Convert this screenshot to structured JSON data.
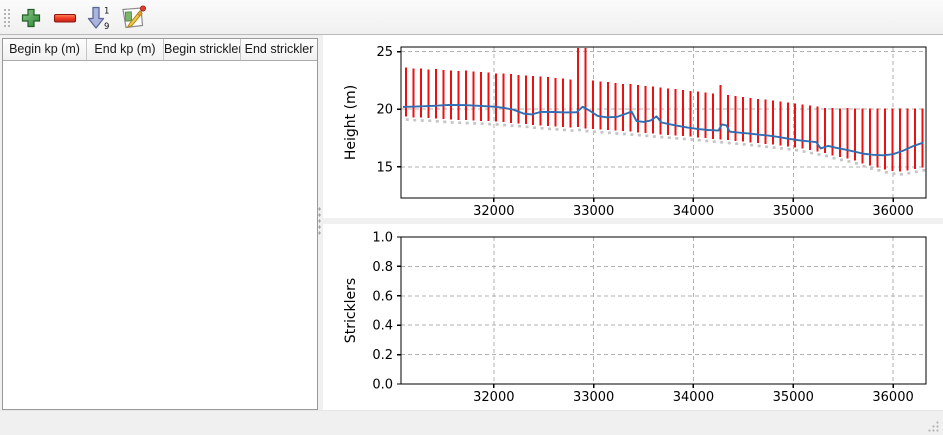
{
  "window": {
    "background": "#f0f0f0"
  },
  "toolbar": {
    "buttons": [
      {
        "id": "add-row",
        "icon": "plus-icon"
      },
      {
        "id": "remove-row",
        "icon": "minus-icon"
      },
      {
        "id": "sort-numeric",
        "icon": "sort-numeric-descending-icon",
        "digit_top": "1",
        "digit_bottom": "9"
      },
      {
        "id": "edit-table",
        "icon": "edit-table-icon"
      }
    ]
  },
  "table": {
    "columns": [
      "Begin kp (m)",
      "End kp (m)",
      "Begin strickler",
      "End strickler"
    ],
    "rows": []
  },
  "colors": {
    "range_bar": "#e81212",
    "ground_mark": "#c6c6c6",
    "mean_line": "#2f6eb4",
    "grid": "#b0b0b0"
  },
  "chart_data": [
    {
      "type": "line",
      "title": "",
      "xlabel": "",
      "ylabel": "Height (m)",
      "xlim": [
        31070,
        36330
      ],
      "ylim": [
        12.3,
        25.4
      ],
      "grid": true,
      "x_ticks": [
        {
          "v": 32000,
          "label": "32000"
        },
        {
          "v": 33000,
          "label": "33000"
        },
        {
          "v": 34000,
          "label": "34000"
        },
        {
          "v": 35000,
          "label": "35000"
        },
        {
          "v": 36000,
          "label": "36000"
        }
      ],
      "y_ticks": [
        {
          "v": 15,
          "label": "15"
        },
        {
          "v": 20,
          "label": "20"
        },
        {
          "v": 25,
          "label": "25"
        }
      ],
      "series": [
        {
          "name": "cross-section-range",
          "type": "range-bars",
          "color": "#e81212",
          "marker_color": "#c6c6c6",
          "bars": [
            [
              31120,
              19.35,
              23.62
            ],
            [
              31195,
              19.3,
              23.55
            ],
            [
              31270,
              19.27,
              23.52
            ],
            [
              31345,
              19.25,
              23.45
            ],
            [
              31420,
              19.2,
              23.5
            ],
            [
              31495,
              19.15,
              23.42
            ],
            [
              31570,
              19.1,
              23.38
            ],
            [
              31645,
              19.08,
              23.3
            ],
            [
              31720,
              19.05,
              23.35
            ],
            [
              31795,
              19.02,
              23.28
            ],
            [
              31870,
              19.0,
              23.22
            ],
            [
              31945,
              18.96,
              23.2
            ],
            [
              32020,
              18.93,
              23.12
            ],
            [
              32095,
              18.88,
              23.1
            ],
            [
              32170,
              18.82,
              23.05
            ],
            [
              32245,
              18.78,
              22.95
            ],
            [
              32320,
              18.72,
              22.93
            ],
            [
              32395,
              18.65,
              22.9
            ],
            [
              32470,
              18.6,
              22.82
            ],
            [
              32545,
              18.55,
              22.78
            ],
            [
              32620,
              18.5,
              22.7
            ],
            [
              32695,
              18.45,
              22.68
            ],
            [
              32770,
              18.4,
              22.6
            ],
            [
              32845,
              18.45,
              25.3
            ],
            [
              32920,
              18.35,
              25.3
            ],
            [
              32995,
              18.3,
              22.48
            ],
            [
              33070,
              18.25,
              22.4
            ],
            [
              33145,
              18.2,
              22.35
            ],
            [
              33220,
              18.14,
              22.28
            ],
            [
              33295,
              18.1,
              22.2
            ],
            [
              33370,
              18.05,
              22.18
            ],
            [
              33445,
              18.0,
              22.1
            ],
            [
              33520,
              17.94,
              22.02
            ],
            [
              33595,
              17.88,
              21.97
            ],
            [
              33670,
              17.83,
              21.9
            ],
            [
              33745,
              17.78,
              21.82
            ],
            [
              33820,
              17.72,
              21.75
            ],
            [
              33895,
              17.67,
              21.66
            ],
            [
              33970,
              17.62,
              21.6
            ],
            [
              34045,
              17.56,
              21.52
            ],
            [
              34120,
              17.5,
              21.44
            ],
            [
              34195,
              17.44,
              21.36
            ],
            [
              34270,
              17.38,
              22.1
            ],
            [
              34345,
              17.32,
              21.22
            ],
            [
              34420,
              17.26,
              21.14
            ],
            [
              34495,
              17.2,
              21.06
            ],
            [
              34570,
              17.13,
              20.98
            ],
            [
              34645,
              17.06,
              20.9
            ],
            [
              34720,
              16.99,
              20.84
            ],
            [
              34795,
              16.92,
              20.76
            ],
            [
              34870,
              16.85,
              20.68
            ],
            [
              34945,
              16.78,
              20.6
            ],
            [
              35020,
              16.7,
              20.52
            ],
            [
              35095,
              16.58,
              20.42
            ],
            [
              35170,
              16.45,
              20.32
            ],
            [
              35245,
              16.32,
              20.22
            ],
            [
              35320,
              16.2,
              20.12
            ],
            [
              35395,
              16.0,
              20.1
            ],
            [
              35470,
              15.85,
              20.07
            ],
            [
              35545,
              15.72,
              20.1
            ],
            [
              35620,
              15.55,
              20.05
            ],
            [
              35695,
              15.3,
              20.08
            ],
            [
              35770,
              15.1,
              20.05
            ],
            [
              35845,
              14.95,
              20.07
            ],
            [
              35920,
              14.78,
              20.05
            ],
            [
              35995,
              14.65,
              20.08
            ],
            [
              36070,
              14.6,
              20.05
            ],
            [
              36145,
              14.7,
              20.07
            ],
            [
              36220,
              14.82,
              20.05
            ],
            [
              36295,
              14.95,
              20.06
            ]
          ]
        },
        {
          "name": "mean-height",
          "type": "line",
          "color": "#2f6eb4",
          "points": [
            [
              31090,
              20.2
            ],
            [
              31250,
              20.24
            ],
            [
              31400,
              20.3
            ],
            [
              31550,
              20.37
            ],
            [
              31700,
              20.36
            ],
            [
              31850,
              20.3
            ],
            [
              32000,
              20.22
            ],
            [
              32100,
              20.12
            ],
            [
              32200,
              19.95
            ],
            [
              32300,
              19.62
            ],
            [
              32380,
              19.55
            ],
            [
              32470,
              19.77
            ],
            [
              32600,
              19.76
            ],
            [
              32720,
              19.72
            ],
            [
              32830,
              19.74
            ],
            [
              32890,
              20.22
            ],
            [
              32960,
              19.88
            ],
            [
              33040,
              19.42
            ],
            [
              33130,
              19.3
            ],
            [
              33230,
              19.33
            ],
            [
              33320,
              19.6
            ],
            [
              33380,
              19.8
            ],
            [
              33430,
              18.98
            ],
            [
              33500,
              18.9
            ],
            [
              33570,
              19.02
            ],
            [
              33630,
              19.38
            ],
            [
              33680,
              18.85
            ],
            [
              33760,
              18.7
            ],
            [
              33850,
              18.55
            ],
            [
              33950,
              18.4
            ],
            [
              34050,
              18.28
            ],
            [
              34150,
              18.2
            ],
            [
              34250,
              18.15
            ],
            [
              34285,
              18.68
            ],
            [
              34330,
              18.6
            ],
            [
              34365,
              18.05
            ],
            [
              34450,
              17.98
            ],
            [
              34550,
              17.9
            ],
            [
              34650,
              17.8
            ],
            [
              34750,
              17.72
            ],
            [
              34850,
              17.6
            ],
            [
              34950,
              17.45
            ],
            [
              35050,
              17.32
            ],
            [
              35150,
              17.22
            ],
            [
              35230,
              17.15
            ],
            [
              35275,
              16.6
            ],
            [
              35350,
              16.82
            ],
            [
              35430,
              16.65
            ],
            [
              35520,
              16.5
            ],
            [
              35600,
              16.35
            ],
            [
              35700,
              16.15
            ],
            [
              35800,
              16.05
            ],
            [
              35900,
              16.0
            ],
            [
              36000,
              16.1
            ],
            [
              36100,
              16.4
            ],
            [
              36200,
              16.8
            ],
            [
              36300,
              17.1
            ]
          ]
        }
      ]
    },
    {
      "type": "line",
      "title": "",
      "xlabel": "",
      "ylabel": "Stricklers",
      "xlim": [
        31070,
        36330
      ],
      "ylim": [
        0,
        1
      ],
      "grid": true,
      "x_ticks": [
        {
          "v": 32000,
          "label": "32000"
        },
        {
          "v": 33000,
          "label": "33000"
        },
        {
          "v": 34000,
          "label": "34000"
        },
        {
          "v": 35000,
          "label": "35000"
        },
        {
          "v": 36000,
          "label": "36000"
        }
      ],
      "y_ticks": [
        {
          "v": 0.0,
          "label": "0.0"
        },
        {
          "v": 0.2,
          "label": "0.2"
        },
        {
          "v": 0.4,
          "label": "0.4"
        },
        {
          "v": 0.6,
          "label": "0.6"
        },
        {
          "v": 0.8,
          "label": "0.8"
        },
        {
          "v": 1.0,
          "label": "1.0"
        }
      ],
      "series": []
    }
  ]
}
